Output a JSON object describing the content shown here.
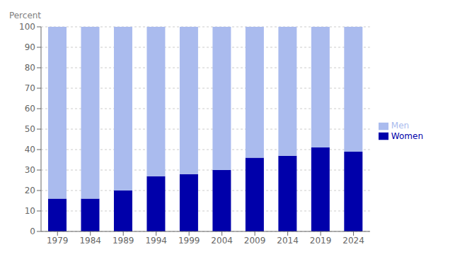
{
  "chart_data": {
    "type": "bar",
    "stacked": true,
    "y_label": "Percent",
    "categories": [
      "1979",
      "1984",
      "1989",
      "1994",
      "1999",
      "2004",
      "2009",
      "2014",
      "2019",
      "2024"
    ],
    "series": [
      {
        "name": "Women",
        "color": "#0000AA",
        "values": [
          16,
          16,
          20,
          27,
          28,
          30,
          36,
          37,
          41,
          39
        ]
      },
      {
        "name": "Men",
        "color": "#AABBEE",
        "values": [
          84,
          84,
          80,
          73,
          72,
          70,
          64,
          63,
          59,
          61
        ]
      }
    ],
    "ylim": [
      0,
      100
    ],
    "yticks": [
      0,
      10,
      20,
      30,
      40,
      50,
      60,
      70,
      80,
      90,
      100
    ],
    "grid": true,
    "legend": "right"
  }
}
